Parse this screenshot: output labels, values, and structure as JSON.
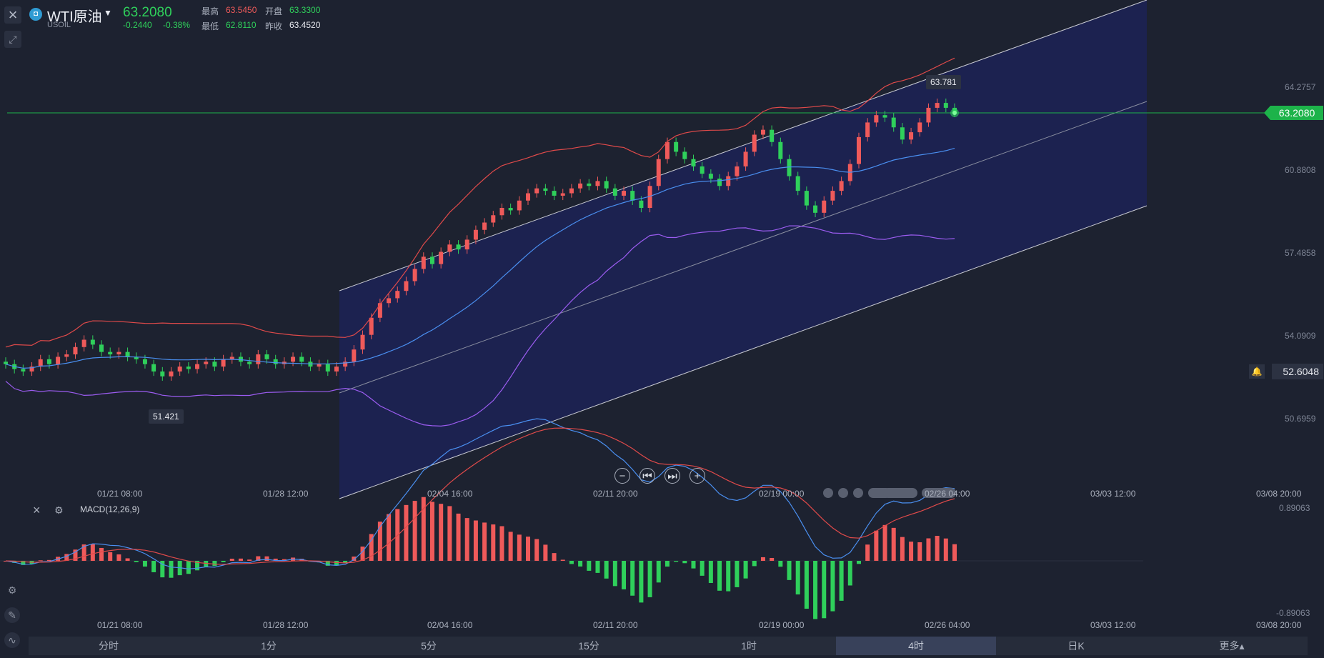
{
  "header": {
    "name": "WTI原油",
    "code": "USOIL",
    "price": "63.2080",
    "change": "-0.2440",
    "change_pct": "-0.38%",
    "high_label": "最高",
    "high": "63.5450",
    "low_label": "最低",
    "low": "62.8110",
    "open_label": "开盘",
    "open": "63.3300",
    "prev_close_label": "昨收",
    "prev_close": "63.4520"
  },
  "price_axis": {
    "ticks": [
      "64.2757",
      "60.8808",
      "57.4858",
      "54.0909",
      "50.6959"
    ],
    "current_price_tag": "63.2080",
    "alert_price": "52.6048"
  },
  "annotations": {
    "high_label": "63.781",
    "low_label": "51.421"
  },
  "time_axis": [
    "01/21 08:00",
    "01/28 12:00",
    "02/04 16:00",
    "02/11 20:00",
    "02/19 00:00",
    "02/26 04:00",
    "03/03 12:00",
    "03/08 20:00"
  ],
  "macd": {
    "label": "MACD(12,26,9)",
    "max": "0.89063",
    "min": "-0.89063"
  },
  "timeframes": [
    {
      "label": "分时"
    },
    {
      "label": "1分"
    },
    {
      "label": "5分"
    },
    {
      "label": "15分"
    },
    {
      "label": "1时"
    },
    {
      "label": "4时"
    },
    {
      "label": "日K"
    },
    {
      "label": "更多▴"
    }
  ],
  "active_timeframe": "4时",
  "colors": {
    "up": "#ef5a5a",
    "down": "#2fd05b",
    "mid_band": "#4a8ff0",
    "upper_band": "#e04a4a",
    "lower_band": "#9b5cf0",
    "channel_fill": "#1c2352",
    "dif": "#4a8ff0",
    "dea": "#e04a4a"
  },
  "icons": {
    "close": "close-icon",
    "tool": "pin-icon",
    "settings": "gear-icon",
    "alert": "bell-icon"
  },
  "chart_data": {
    "type": "candlestick",
    "close_series_approx": [
      52.9,
      52.7,
      52.6,
      52.8,
      53.1,
      52.9,
      53.2,
      53.3,
      53.6,
      53.9,
      53.7,
      53.4,
      53.3,
      53.4,
      53.2,
      53.1,
      52.9,
      52.6,
      52.4,
      52.6,
      52.8,
      52.7,
      52.9,
      53.0,
      52.8,
      53.1,
      53.2,
      53.0,
      52.9,
      53.3,
      53.1,
      52.9,
      53.0,
      53.2,
      53.0,
      52.8,
      52.9,
      52.6,
      52.8,
      53.0,
      53.5,
      54.1,
      54.8,
      55.4,
      55.6,
      55.9,
      56.3,
      56.8,
      57.3,
      57.0,
      57.5,
      57.8,
      57.6,
      58.0,
      58.4,
      58.7,
      59.0,
      59.3,
      59.2,
      59.6,
      59.9,
      60.1,
      60.0,
      59.8,
      59.9,
      60.1,
      60.3,
      60.2,
      60.4,
      60.1,
      59.8,
      60.0,
      59.6,
      59.3,
      60.2,
      61.3,
      62.0,
      61.6,
      61.3,
      61.0,
      60.7,
      60.5,
      60.2,
      60.6,
      61.0,
      61.6,
      62.3,
      62.5,
      62.0,
      61.3,
      60.6,
      60.0,
      59.4,
      59.1,
      59.6,
      60.0,
      60.4,
      61.1,
      62.2,
      62.8,
      63.1,
      63.0,
      62.6,
      62.1,
      62.4,
      62.8,
      63.4,
      63.6,
      63.4,
      63.2
    ],
    "indicators": [
      "Bollinger Bands",
      "MACD(12,26,9)"
    ]
  }
}
